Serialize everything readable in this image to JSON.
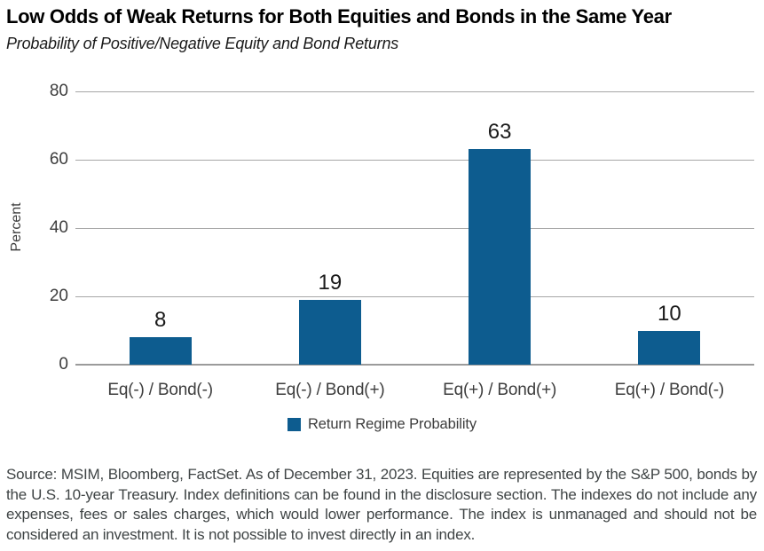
{
  "chart_data": {
    "type": "bar",
    "title": "Low Odds of Weak Returns for Both Equities and Bonds in the Same Year",
    "subtitle": "Probability of Positive/Negative Equity and Bond Returns",
    "categories": [
      "Eq(-) / Bond(-)",
      "Eq(-) / Bond(+)",
      "Eq(+) / Bond(+)",
      "Eq(+) / Bond(-)"
    ],
    "series": [
      {
        "name": "Return Regime Probability",
        "values": [
          8,
          19,
          63,
          10
        ]
      }
    ],
    "xlabel": "",
    "ylabel": "Percent",
    "ylim": [
      0,
      80
    ],
    "yticks": [
      0,
      20,
      40,
      60,
      80
    ],
    "grid": true,
    "legend": {
      "label": "Return Regime Probability",
      "position": "bottom-center"
    },
    "colors": {
      "bar": "#0d5c8f",
      "gridline": "#a6a6a6",
      "axis": "#9b9b9b",
      "tick_text": "#3d3d3d",
      "value_label": "#1a1a1a"
    }
  },
  "footer": {
    "source_text": "Source: MSIM, Bloomberg, FactSet. As of December 31, 2023. Equities are represented by the S&P 500, bonds by the U.S. 10-year Treasury. Index definitions can be found in the disclosure section. The indexes do not include any expenses, fees or sales charges, which would lower performance. The index is unmanaged and should not be considered an investment. It is not possible to invest directly in an index."
  }
}
